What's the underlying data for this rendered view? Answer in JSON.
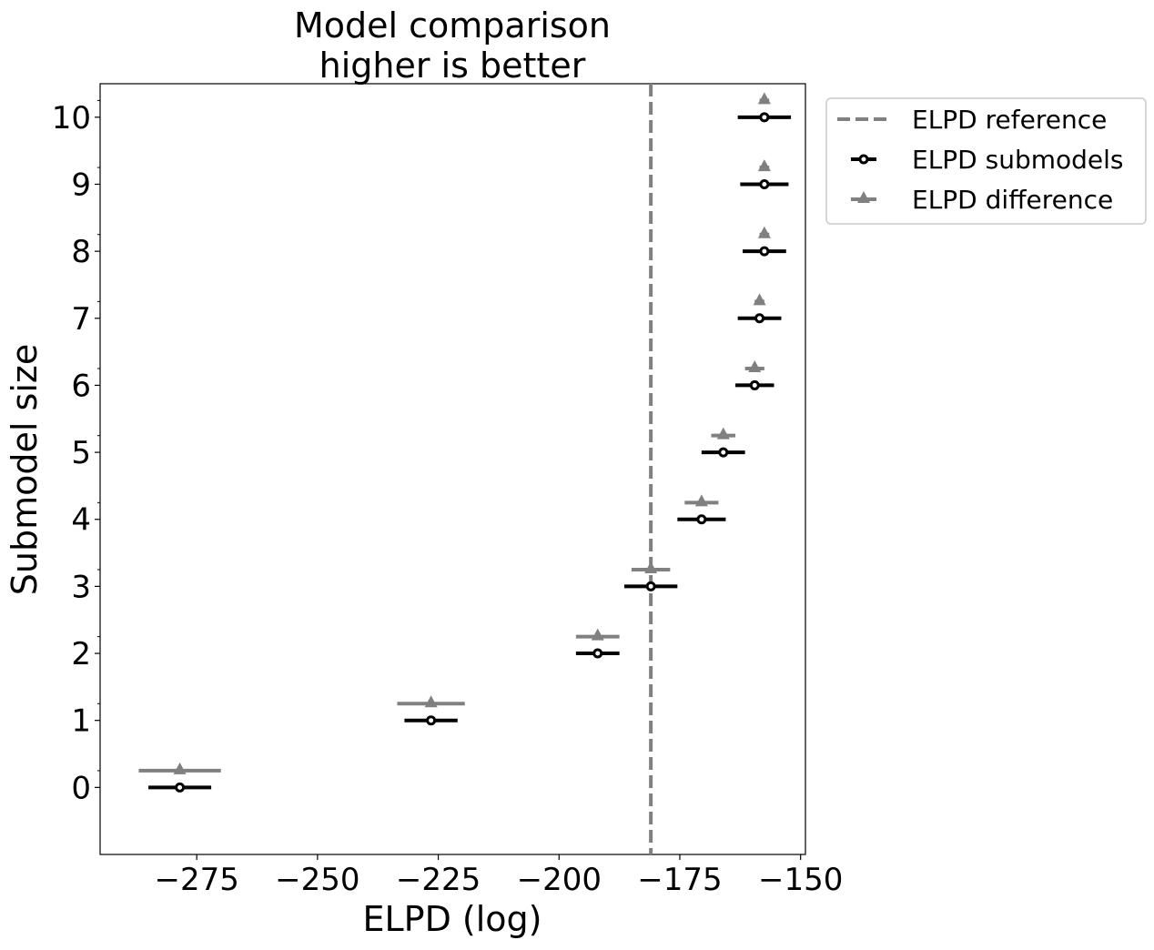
{
  "chart_data": {
    "type": "scatter",
    "title_lines": [
      "Model comparison",
      "higher is better"
    ],
    "xlabel": "ELPD (log)",
    "ylabel": "Submodel size",
    "xlim": [
      -295,
      -149
    ],
    "ylim": [
      -1,
      10.5
    ],
    "x_ticks": [
      -275,
      -250,
      -225,
      -200,
      -175,
      -150
    ],
    "x_tick_labels": [
      "−275",
      "−250",
      "−225",
      "−200",
      "−175",
      "−150"
    ],
    "y_ticks": [
      0,
      1,
      2,
      3,
      4,
      5,
      6,
      7,
      8,
      9,
      10
    ],
    "y_tick_labels": [
      "0",
      "1",
      "2",
      "3",
      "4",
      "5",
      "6",
      "7",
      "8",
      "9",
      "10"
    ],
    "reference_line": {
      "name": "ELPD reference",
      "x": -181,
      "color": "#808080",
      "style": "dashed"
    },
    "series": [
      {
        "name": "ELPD submodels",
        "color": "#000000",
        "marker": "circle-open",
        "y": [
          0,
          1,
          2,
          3,
          4,
          5,
          6,
          7,
          8,
          9,
          10
        ],
        "x": [
          -278.5,
          -226.5,
          -192,
          -181,
          -170.5,
          -166,
          -159.5,
          -158.5,
          -157.5,
          -157.5,
          -157.5
        ],
        "err": [
          6.5,
          5.5,
          4.5,
          5.5,
          5,
          4.5,
          4,
          4.5,
          4.5,
          5,
          5.5
        ]
      },
      {
        "name": "ELPD difference",
        "color": "#808080",
        "marker": "triangle",
        "y": [
          0.25,
          1.25,
          2.25,
          3.25,
          4.25,
          5.25,
          6.25,
          7.25,
          8.25,
          9.25,
          10.25
        ],
        "x": [
          -278.5,
          -226.5,
          -192,
          -181,
          -170.5,
          -166,
          -159.5,
          -158.5,
          -157.5,
          -157.5,
          -157.5
        ],
        "err": [
          8.5,
          7,
          4.5,
          4,
          3.5,
          2.5,
          2,
          1,
          1,
          1,
          1
        ]
      }
    ],
    "legend": {
      "placement": "outside-upper-right"
    },
    "grid": false
  }
}
